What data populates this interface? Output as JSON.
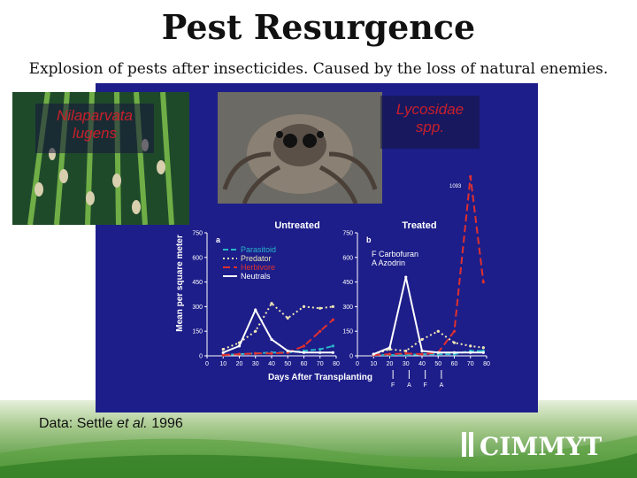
{
  "slide": {
    "title": "Pest Resurgence",
    "subtitle": "Explosion of pests after insecticides. Caused by the loss of natural enemies.",
    "photo_left_caption": "Nilaparvata lugens",
    "photo_right_caption": "Lycosidae spp.",
    "citation_prefix": "Data: Settle ",
    "citation_italic": "et al.",
    "citation_year": "1996",
    "logo_text": "CIMMYT"
  },
  "colors": {
    "chart_bg": "#1d1e8a",
    "parasitoid": "#29b6c8",
    "predator": "#f0e6b4",
    "herbivore": "#e0302e",
    "neutrals": "#ffffff",
    "footer_green": "#3d8a2c"
  },
  "chart_data": [
    {
      "type": "line",
      "panel_label": "a",
      "title": "Untreated",
      "xlabel": "Days After Transplanting",
      "ylabel": "Mean per square meter",
      "xlim": [
        0,
        80
      ],
      "ylim": [
        0,
        750
      ],
      "x_ticks": [
        "0",
        "10",
        "20",
        "30",
        "40",
        "50",
        "60",
        "70",
        "80"
      ],
      "y_ticks": [
        "0",
        "150",
        "300",
        "450",
        "600",
        "750"
      ],
      "legend": [
        "Parasitoid",
        "Predator",
        "Herbivore",
        "Neutrals"
      ],
      "series": [
        {
          "name": "Parasitoid",
          "x": [
            10,
            20,
            30,
            40,
            50,
            60,
            70,
            78
          ],
          "values": [
            5,
            10,
            15,
            20,
            20,
            30,
            40,
            60
          ]
        },
        {
          "name": "Predator",
          "x": [
            10,
            20,
            30,
            40,
            50,
            60,
            70,
            78
          ],
          "values": [
            40,
            80,
            150,
            320,
            230,
            300,
            290,
            300
          ]
        },
        {
          "name": "Herbivore",
          "x": [
            10,
            20,
            30,
            40,
            50,
            60,
            70,
            78
          ],
          "values": [
            5,
            10,
            15,
            15,
            20,
            60,
            150,
            220
          ]
        },
        {
          "name": "Neutrals",
          "x": [
            10,
            20,
            30,
            40,
            50,
            60,
            70,
            78
          ],
          "values": [
            20,
            60,
            280,
            100,
            30,
            20,
            20,
            20
          ]
        }
      ]
    },
    {
      "type": "line",
      "panel_label": "b",
      "title": "Treated",
      "xlabel": "Days After Transplanting",
      "xlim": [
        0,
        80
      ],
      "ylim": [
        0,
        750
      ],
      "x_ticks": [
        "0",
        "10",
        "20",
        "30",
        "40",
        "50",
        "60",
        "70",
        "80"
      ],
      "y_ticks": [
        "0",
        "150",
        "300",
        "450",
        "600",
        "750"
      ],
      "annotations": [
        "F  Carbofuran",
        "A  Azodrin",
        "1093"
      ],
      "application_markers": [
        "F",
        "A",
        "F",
        "A"
      ],
      "series": [
        {
          "name": "Parasitoid",
          "x": [
            10,
            20,
            30,
            40,
            50,
            60,
            70,
            78
          ],
          "values": [
            5,
            5,
            5,
            10,
            10,
            10,
            30,
            30
          ]
        },
        {
          "name": "Predator",
          "x": [
            10,
            20,
            30,
            40,
            50,
            60,
            70,
            78
          ],
          "values": [
            10,
            40,
            30,
            100,
            150,
            80,
            60,
            50
          ]
        },
        {
          "name": "Herbivore",
          "x": [
            10,
            20,
            30,
            40,
            50,
            60,
            70,
            78
          ],
          "values": [
            5,
            10,
            15,
            10,
            20,
            150,
            1093,
            450
          ]
        },
        {
          "name": "Neutrals",
          "x": [
            10,
            20,
            30,
            40,
            50,
            60,
            70,
            78
          ],
          "values": [
            10,
            50,
            480,
            30,
            20,
            20,
            20,
            20
          ]
        }
      ]
    }
  ]
}
